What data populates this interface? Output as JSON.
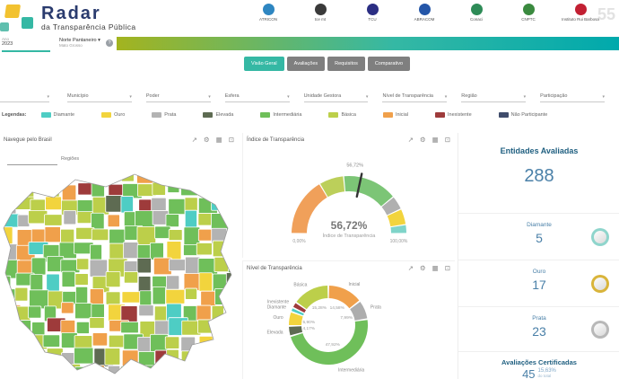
{
  "header": {
    "logo_title": "Radar",
    "logo_subtitle": "da Transparência Pública",
    "partners": [
      {
        "label": "ATRICON",
        "color": "#2E86C1"
      },
      {
        "label": "tce mt",
        "color": "#3a3a3a"
      },
      {
        "label": "TCU",
        "color": "#2B2E83"
      },
      {
        "label": "ABRACOM",
        "color": "#2456A8"
      },
      {
        "label": "Conaci",
        "color": "#2E8B57"
      },
      {
        "label": "CNPTC",
        "color": "#3A8A3F"
      },
      {
        "label": "Instituto Rui Barbosa",
        "color": "#C22033",
        "extra": "55"
      }
    ]
  },
  "subheader": {
    "year_label": "Ano",
    "year_value": "2023",
    "selector_label": "Norte Pantaneiro ▾",
    "selector_sublabel": "Mato Grosso",
    "info_icon": "?"
  },
  "tabs": {
    "items": [
      {
        "label": "Visão Geral",
        "active": true
      },
      {
        "label": "Avaliações",
        "active": false
      },
      {
        "label": "Requisitos",
        "active": false
      },
      {
        "label": "Comparativo",
        "active": false
      }
    ]
  },
  "filters": {
    "items": [
      {
        "label": ""
      },
      {
        "label": "Município"
      },
      {
        "label": "Poder"
      },
      {
        "label": "Esfera"
      },
      {
        "label": "Unidade Gestora"
      },
      {
        "label": "Nível de Transparência"
      },
      {
        "label": "Região"
      },
      {
        "label": "Participação"
      }
    ],
    "caret": "▾"
  },
  "legend": {
    "title": "Legendas:",
    "items": [
      {
        "label": "Diamante",
        "color": "#4ECDC4"
      },
      {
        "label": "Ouro",
        "color": "#F2D43D"
      },
      {
        "label": "Prata",
        "color": "#B3B3B3"
      },
      {
        "label": "Elevada",
        "color": "#5E6B52"
      },
      {
        "label": "Intermediária",
        "color": "#6FBF5A"
      },
      {
        "label": "Básica",
        "color": "#BCCF4A"
      },
      {
        "label": "Inicial",
        "color": "#F0A04B"
      },
      {
        "label": "Inexistente",
        "color": "#9E3B3B"
      },
      {
        "label": "Não Participante",
        "color": "#3F4C6B"
      }
    ]
  },
  "panel_icons": {
    "share": "↗",
    "settings": "⚙",
    "table": "▦",
    "expand": "⊡"
  },
  "map_panel": {
    "title": "Navegue pelo Brasil",
    "search_value": "",
    "toggle_label": "Regiões"
  },
  "stats": {
    "evaluated_title": "Entidades Avaliadas",
    "evaluated_value": "288",
    "medals": [
      {
        "label": "Diamante",
        "value": "5",
        "color": "#8FD5CC"
      },
      {
        "label": "Ouro",
        "value": "17",
        "color": "#D9B43A"
      },
      {
        "label": "Prata",
        "value": "23",
        "color": "#B8B8B8"
      }
    ],
    "certified_title": "Avaliações Certificadas",
    "certified_value": "45",
    "certified_pct": "15,63%",
    "certified_pct_sub": "do total"
  },
  "chart_data": [
    {
      "type": "gauge",
      "title": "Índice de Transparência",
      "value": 56.72,
      "value_label": "56,72%",
      "center_label": "Índice de Transparência",
      "min": 0,
      "max": 100,
      "min_label": "0,00%",
      "max_label": "100,00%",
      "segments": [
        {
          "label": "Inicial",
          "from": 0,
          "to": 33,
          "color": "#F0A05A"
        },
        {
          "label": "Básica",
          "from": 33,
          "to": 47,
          "color": "#BCCF5A"
        },
        {
          "label": "Intermediária",
          "from": 47,
          "to": 78,
          "color": "#7CC576"
        },
        {
          "label": "Prata",
          "from": 78,
          "to": 86,
          "color": "#B0B0B0"
        },
        {
          "label": "Ouro",
          "from": 86,
          "to": 95,
          "color": "#F2D43D"
        },
        {
          "label": "Diamante",
          "from": 95,
          "to": 100,
          "color": "#7FD4C9"
        }
      ]
    },
    {
      "type": "donut",
      "title": "Nível de Transparência",
      "slices": [
        {
          "label": "Inicial",
          "value": 14.58,
          "display": "14,58%",
          "color": "#F0A04B"
        },
        {
          "label": "Prata",
          "value": 7.99,
          "display": "7,99%",
          "color": "#ADADAD"
        },
        {
          "label": "Intermediária",
          "value": 47.92,
          "display": "47,92%",
          "color": "#6FBF5A"
        },
        {
          "label": "Elevada",
          "value": 4.17,
          "display": "4,17%",
          "color": "#5E6B52"
        },
        {
          "label": "Ouro",
          "value": 5.9,
          "display": "5,90%",
          "color": "#F2D43D"
        },
        {
          "label": "Diamante",
          "value": 1.74,
          "display": "1,74%",
          "color": "#4ECDC4"
        },
        {
          "label": "Inexistente",
          "value": 2.43,
          "display": "2,43%",
          "color": "#9E3B3B"
        },
        {
          "label": "Básica",
          "value": 15.28,
          "display": "15,28%",
          "color": "#BCCF4A"
        }
      ]
    }
  ]
}
